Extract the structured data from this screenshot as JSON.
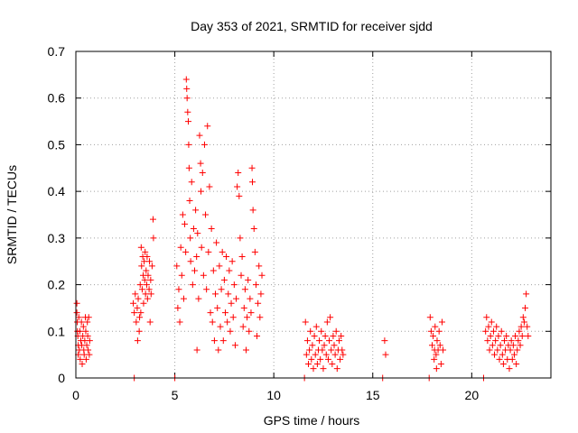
{
  "chart_data": {
    "type": "scatter",
    "title": "Day 353 of 2021, SRMTID for receiver sjdd",
    "xlabel": "GPS time / hours",
    "ylabel": "SRMTID / TECUs",
    "xlim": [
      0,
      24
    ],
    "ylim": [
      0,
      0.7
    ],
    "xticks": [
      0,
      5,
      10,
      15,
      20
    ],
    "xtick_labels": [
      "0",
      "5",
      "10",
      "15",
      "20"
    ],
    "yticks": [
      0,
      0.1,
      0.2,
      0.3,
      0.4,
      0.5,
      0.6,
      0.7
    ],
    "ytick_labels": [
      "0",
      "0.1",
      "0.2",
      "0.3",
      "0.4",
      "0.5",
      "0.6",
      "0.7"
    ],
    "grid": true,
    "marker": "+",
    "color": "#ff0000",
    "series": [
      {
        "name": "SRMTID",
        "points": [
          [
            0.05,
            0.16
          ],
          [
            0.05,
            0.14
          ],
          [
            0.07,
            0.12
          ],
          [
            0.08,
            0.1
          ],
          [
            0.1,
            0.09
          ],
          [
            0.12,
            0.07
          ],
          [
            0.12,
            0.05
          ],
          [
            0.15,
            0.13
          ],
          [
            0.18,
            0.06
          ],
          [
            0.2,
            0.1
          ],
          [
            0.22,
            0.04
          ],
          [
            0.25,
            0.08
          ],
          [
            0.28,
            0.12
          ],
          [
            0.3,
            0.07
          ],
          [
            0.32,
            0.03
          ],
          [
            0.35,
            0.09
          ],
          [
            0.38,
            0.11
          ],
          [
            0.4,
            0.06
          ],
          [
            0.42,
            0.05
          ],
          [
            0.45,
            0.08
          ],
          [
            0.48,
            0.13
          ],
          [
            0.5,
            0.1
          ],
          [
            0.52,
            0.04
          ],
          [
            0.55,
            0.07
          ],
          [
            0.58,
            0.12
          ],
          [
            0.6,
            0.09
          ],
          [
            0.62,
            0.06
          ],
          [
            0.65,
            0.13
          ],
          [
            0.68,
            0.05
          ],
          [
            0.7,
            0.08
          ],
          [
            2.9,
            0.16
          ],
          [
            2.95,
            0.14
          ],
          [
            3.0,
            0.18
          ],
          [
            3.05,
            0.12
          ],
          [
            3.1,
            0.15
          ],
          [
            3.12,
            0.08
          ],
          [
            3.15,
            0.17
          ],
          [
            3.2,
            0.1
          ],
          [
            3.22,
            0.13
          ],
          [
            3.25,
            0.2
          ],
          [
            3.28,
            0.14
          ],
          [
            3.3,
            0.28
          ],
          [
            3.32,
            0.24
          ],
          [
            3.35,
            0.19
          ],
          [
            3.38,
            0.26
          ],
          [
            3.4,
            0.22
          ],
          [
            3.42,
            0.16
          ],
          [
            3.45,
            0.25
          ],
          [
            3.48,
            0.21
          ],
          [
            3.5,
            0.27
          ],
          [
            3.52,
            0.18
          ],
          [
            3.55,
            0.23
          ],
          [
            3.58,
            0.2
          ],
          [
            3.6,
            0.26
          ],
          [
            3.62,
            0.17
          ],
          [
            3.65,
            0.22
          ],
          [
            3.7,
            0.19
          ],
          [
            3.72,
            0.25
          ],
          [
            3.75,
            0.12
          ],
          [
            3.78,
            0.21
          ],
          [
            3.8,
            0.18
          ],
          [
            3.85,
            0.24
          ],
          [
            3.9,
            0.34
          ],
          [
            3.92,
            0.3
          ],
          [
            5.1,
            0.24
          ],
          [
            5.15,
            0.15
          ],
          [
            5.2,
            0.19
          ],
          [
            5.25,
            0.12
          ],
          [
            5.3,
            0.28
          ],
          [
            5.35,
            0.22
          ],
          [
            5.4,
            0.35
          ],
          [
            5.45,
            0.17
          ],
          [
            5.5,
            0.33
          ],
          [
            5.55,
            0.27
          ],
          [
            5.58,
            0.64
          ],
          [
            5.6,
            0.62
          ],
          [
            5.62,
            0.6
          ],
          [
            5.65,
            0.57
          ],
          [
            5.68,
            0.55
          ],
          [
            5.7,
            0.5
          ],
          [
            5.72,
            0.45
          ],
          [
            5.75,
            0.38
          ],
          [
            5.78,
            0.3
          ],
          [
            5.8,
            0.25
          ],
          [
            5.85,
            0.42
          ],
          [
            5.9,
            0.2
          ],
          [
            5.95,
            0.32
          ],
          [
            6.0,
            0.23
          ],
          [
            6.05,
            0.36
          ],
          [
            6.1,
            0.26
          ],
          [
            6.12,
            0.06
          ],
          [
            6.15,
            0.31
          ],
          [
            6.2,
            0.17
          ],
          [
            6.25,
            0.52
          ],
          [
            6.3,
            0.46
          ],
          [
            6.32,
            0.4
          ],
          [
            6.35,
            0.28
          ],
          [
            6.4,
            0.44
          ],
          [
            6.45,
            0.22
          ],
          [
            6.5,
            0.5
          ],
          [
            6.55,
            0.35
          ],
          [
            6.6,
            0.19
          ],
          [
            6.65,
            0.54
          ],
          [
            6.7,
            0.27
          ],
          [
            6.75,
            0.41
          ],
          [
            6.8,
            0.14
          ],
          [
            6.85,
            0.32
          ],
          [
            6.9,
            0.12
          ],
          [
            6.95,
            0.23
          ],
          [
            7.0,
            0.08
          ],
          [
            7.05,
            0.18
          ],
          [
            7.1,
            0.29
          ],
          [
            7.15,
            0.15
          ],
          [
            7.2,
            0.06
          ],
          [
            7.25,
            0.24
          ],
          [
            7.3,
            0.11
          ],
          [
            7.35,
            0.19
          ],
          [
            7.4,
            0.27
          ],
          [
            7.45,
            0.08
          ],
          [
            7.5,
            0.21
          ],
          [
            7.55,
            0.14
          ],
          [
            7.6,
            0.26
          ],
          [
            7.65,
            0.12
          ],
          [
            7.7,
            0.18
          ],
          [
            7.75,
            0.23
          ],
          [
            7.8,
            0.1
          ],
          [
            7.85,
            0.16
          ],
          [
            7.9,
            0.25
          ],
          [
            7.95,
            0.13
          ],
          [
            8.0,
            0.2
          ],
          [
            8.05,
            0.07
          ],
          [
            8.1,
            0.17
          ],
          [
            8.15,
            0.41
          ],
          [
            8.2,
            0.44
          ],
          [
            8.25,
            0.39
          ],
          [
            8.3,
            0.3
          ],
          [
            8.35,
            0.22
          ],
          [
            8.4,
            0.26
          ],
          [
            8.45,
            0.11
          ],
          [
            8.5,
            0.15
          ],
          [
            8.55,
            0.19
          ],
          [
            8.6,
            0.06
          ],
          [
            8.65,
            0.13
          ],
          [
            8.7,
            0.21
          ],
          [
            8.75,
            0.1
          ],
          [
            8.8,
            0.17
          ],
          [
            8.85,
            0.14
          ],
          [
            8.9,
            0.45
          ],
          [
            8.92,
            0.42
          ],
          [
            8.95,
            0.36
          ],
          [
            9.0,
            0.32
          ],
          [
            9.05,
            0.27
          ],
          [
            9.1,
            0.2
          ],
          [
            9.15,
            0.09
          ],
          [
            9.2,
            0.16
          ],
          [
            9.25,
            0.24
          ],
          [
            9.3,
            0.13
          ],
          [
            9.35,
            0.18
          ],
          [
            9.4,
            0.22
          ],
          [
            11.6,
            0.12
          ],
          [
            11.65,
            0.05
          ],
          [
            11.7,
            0.08
          ],
          [
            11.75,
            0.03
          ],
          [
            11.8,
            0.06
          ],
          [
            11.85,
            0.1
          ],
          [
            11.9,
            0.04
          ],
          [
            11.95,
            0.07
          ],
          [
            12.0,
            0.02
          ],
          [
            12.05,
            0.09
          ],
          [
            12.1,
            0.05
          ],
          [
            12.15,
            0.11
          ],
          [
            12.2,
            0.03
          ],
          [
            12.25,
            0.06
          ],
          [
            12.3,
            0.08
          ],
          [
            12.35,
            0.04
          ],
          [
            12.4,
            0.1
          ],
          [
            12.45,
            0.06
          ],
          [
            12.5,
            0.02
          ],
          [
            12.55,
            0.07
          ],
          [
            12.6,
            0.09
          ],
          [
            12.65,
            0.05
          ],
          [
            12.7,
            0.12
          ],
          [
            12.75,
            0.04
          ],
          [
            12.8,
            0.08
          ],
          [
            12.85,
            0.13
          ],
          [
            12.9,
            0.06
          ],
          [
            12.95,
            0.03
          ],
          [
            13.0,
            0.09
          ],
          [
            13.05,
            0.07
          ],
          [
            13.1,
            0.05
          ],
          [
            13.15,
            0.1
          ],
          [
            13.2,
            0.02
          ],
          [
            13.25,
            0.06
          ],
          [
            13.3,
            0.08
          ],
          [
            13.35,
            0.04
          ],
          [
            13.4,
            0.09
          ],
          [
            13.45,
            0.06
          ],
          [
            13.5,
            0.05
          ],
          [
            15.6,
            0.08
          ],
          [
            15.65,
            0.05
          ],
          [
            17.9,
            0.13
          ],
          [
            17.95,
            0.1
          ],
          [
            18.0,
            0.07
          ],
          [
            18.05,
            0.09
          ],
          [
            18.1,
            0.04
          ],
          [
            18.12,
            0.06
          ],
          [
            18.15,
            0.11
          ],
          [
            18.2,
            0.05
          ],
          [
            18.22,
            0.02
          ],
          [
            18.25,
            0.08
          ],
          [
            18.3,
            0.06
          ],
          [
            18.35,
            0.1
          ],
          [
            18.4,
            0.07
          ],
          [
            18.45,
            0.03
          ],
          [
            18.5,
            0.12
          ],
          [
            18.55,
            0.06
          ],
          [
            20.7,
            0.1
          ],
          [
            20.75,
            0.13
          ],
          [
            20.8,
            0.08
          ],
          [
            20.85,
            0.11
          ],
          [
            20.9,
            0.06
          ],
          [
            20.95,
            0.09
          ],
          [
            21.0,
            0.12
          ],
          [
            21.05,
            0.07
          ],
          [
            21.1,
            0.1
          ],
          [
            21.15,
            0.05
          ],
          [
            21.2,
            0.08
          ],
          [
            21.25,
            0.11
          ],
          [
            21.3,
            0.06
          ],
          [
            21.35,
            0.09
          ],
          [
            21.4,
            0.04
          ],
          [
            21.45,
            0.07
          ],
          [
            21.5,
            0.1
          ],
          [
            21.55,
            0.05
          ],
          [
            21.6,
            0.03
          ],
          [
            21.65,
            0.08
          ],
          [
            21.7,
            0.06
          ],
          [
            21.75,
            0.09
          ],
          [
            21.8,
            0.04
          ],
          [
            21.85,
            0.07
          ],
          [
            21.9,
            0.02
          ],
          [
            21.95,
            0.06
          ],
          [
            22.0,
            0.08
          ],
          [
            22.05,
            0.04
          ],
          [
            22.1,
            0.07
          ],
          [
            22.15,
            0.05
          ],
          [
            22.2,
            0.09
          ],
          [
            22.25,
            0.03
          ],
          [
            22.3,
            0.06
          ],
          [
            22.35,
            0.08
          ],
          [
            22.4,
            0.1
          ],
          [
            22.45,
            0.07
          ],
          [
            22.5,
            0.11
          ],
          [
            22.55,
            0.09
          ],
          [
            22.6,
            0.13
          ],
          [
            22.65,
            0.12
          ],
          [
            22.7,
            0.15
          ],
          [
            22.75,
            0.18
          ],
          [
            22.8,
            0.11
          ],
          [
            22.85,
            0.09
          ]
        ]
      },
      {
        "name": "baseline markers",
        "points": [
          [
            2.95,
            0.0
          ],
          [
            5.0,
            0.0
          ],
          [
            11.55,
            0.0
          ],
          [
            15.5,
            0.0
          ],
          [
            17.85,
            0.0
          ],
          [
            20.6,
            0.0
          ]
        ]
      }
    ]
  }
}
